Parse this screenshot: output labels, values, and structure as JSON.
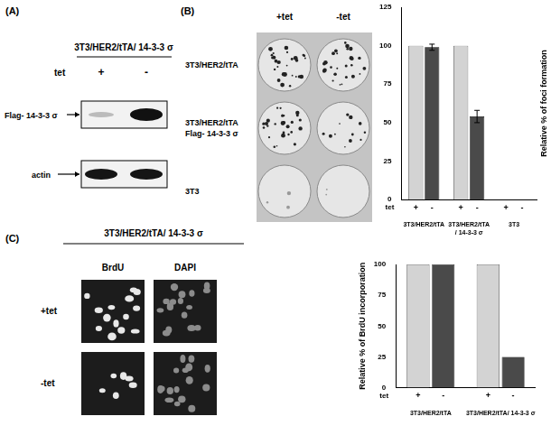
{
  "panel_a": {
    "label": "(A)",
    "title": "3T3/HER2/tTA/ 14-3-3 σ",
    "tet_label": "tet",
    "lanes": [
      "+",
      "-"
    ],
    "rows": [
      "Flag- 14-3-3 σ",
      "actin"
    ]
  },
  "panel_b": {
    "label": "(B)",
    "columns": [
      "+tet",
      "-tet"
    ],
    "rows": [
      [
        "3T3/HER2/tTA"
      ],
      [
        "3T3/HER2/tTA",
        "Flag- 14-3-3 σ"
      ],
      [
        "3T3"
      ]
    ]
  },
  "panel_c": {
    "label": "(C)",
    "title": "3T3/HER2/tTA/ 14-3-3 σ",
    "columns": [
      "BrdU",
      "DAPI"
    ],
    "rows": [
      "+tet",
      "-tet"
    ]
  },
  "chart_data": [
    {
      "type": "bar",
      "categories": [
        [
          "3T3/HER2/tTA"
        ],
        [
          "3T3/HER2/tTA",
          "/ 14-3-3 σ"
        ],
        [
          "3T3"
        ]
      ],
      "series": [
        {
          "name": "+",
          "color": "#d3d3d3",
          "values": [
            100,
            100,
            0
          ]
        },
        {
          "name": "-",
          "color": "#4a4a4a",
          "values": [
            99,
            54,
            0
          ],
          "errors": [
            2,
            4,
            null
          ]
        }
      ],
      "x_label": "tet",
      "y_label": "Relative % of foci formation",
      "ylim": [
        0,
        125
      ],
      "yticks": [
        0,
        25,
        50,
        75,
        100,
        125
      ],
      "grid": false
    },
    {
      "type": "bar",
      "categories": [
        [
          "3T3/HER2/tTA"
        ],
        [
          "3T3/HER2/tTA/ 14-3-3 σ"
        ]
      ],
      "series": [
        {
          "name": "+",
          "color": "#d3d3d3",
          "values": [
            100,
            100
          ]
        },
        {
          "name": "-",
          "color": "#4a4a4a",
          "values": [
            100,
            25
          ]
        }
      ],
      "x_label": "tet",
      "y_label": "Relative % of BrdU incorporation",
      "ylim": [
        0,
        100
      ],
      "yticks": [
        0,
        25,
        50,
        75,
        100
      ],
      "grid": false
    }
  ]
}
